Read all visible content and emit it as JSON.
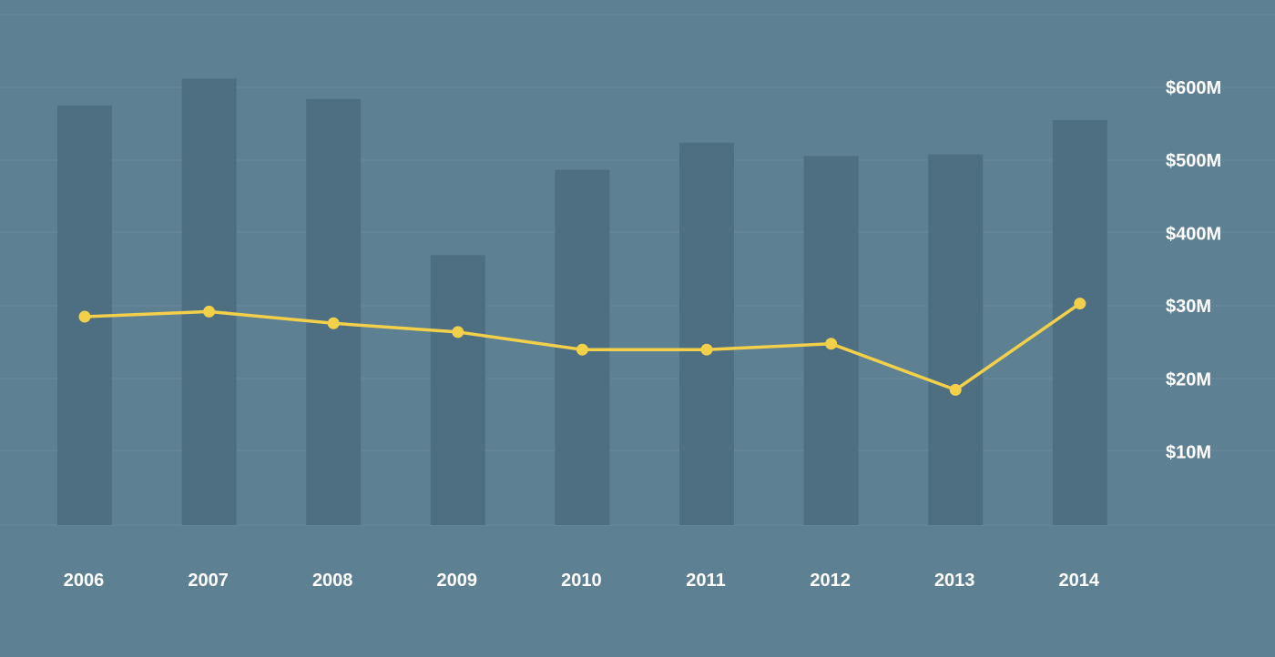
{
  "chart_data": {
    "type": "bar",
    "title": "",
    "xlabel": "",
    "ylabel": "",
    "categories": [
      "2006",
      "2007",
      "2008",
      "2009",
      "2010",
      "2011",
      "2012",
      "2013",
      "2014"
    ],
    "series": [
      {
        "type": "bar",
        "values": [
          575,
          612,
          584,
          370,
          487,
          524,
          506,
          508,
          555
        ]
      },
      {
        "type": "line",
        "values": [
          28.5,
          29.2,
          27.6,
          26.4,
          24.0,
          24.0,
          24.8,
          18.5,
          30.3
        ]
      }
    ],
    "y_ticks": [
      {
        "label": "$600M",
        "bar_value": 600
      },
      {
        "label": "$500M",
        "bar_value": 500
      },
      {
        "label": "$400M",
        "bar_value": 400
      },
      {
        "label": "$30M",
        "line_value": 30
      },
      {
        "label": "$20M",
        "line_value": 20
      },
      {
        "label": "$10M",
        "line_value": 10
      }
    ],
    "bar_ylim": [
      0,
      620
    ],
    "line_ylim": [
      0,
      36
    ],
    "grid": true,
    "legend": "none",
    "colors": {
      "background": "#5e8093",
      "bar": "#4e6e82",
      "line": "#f2d04a",
      "grid": "#6a8a9c",
      "text": "#ffffff"
    }
  }
}
